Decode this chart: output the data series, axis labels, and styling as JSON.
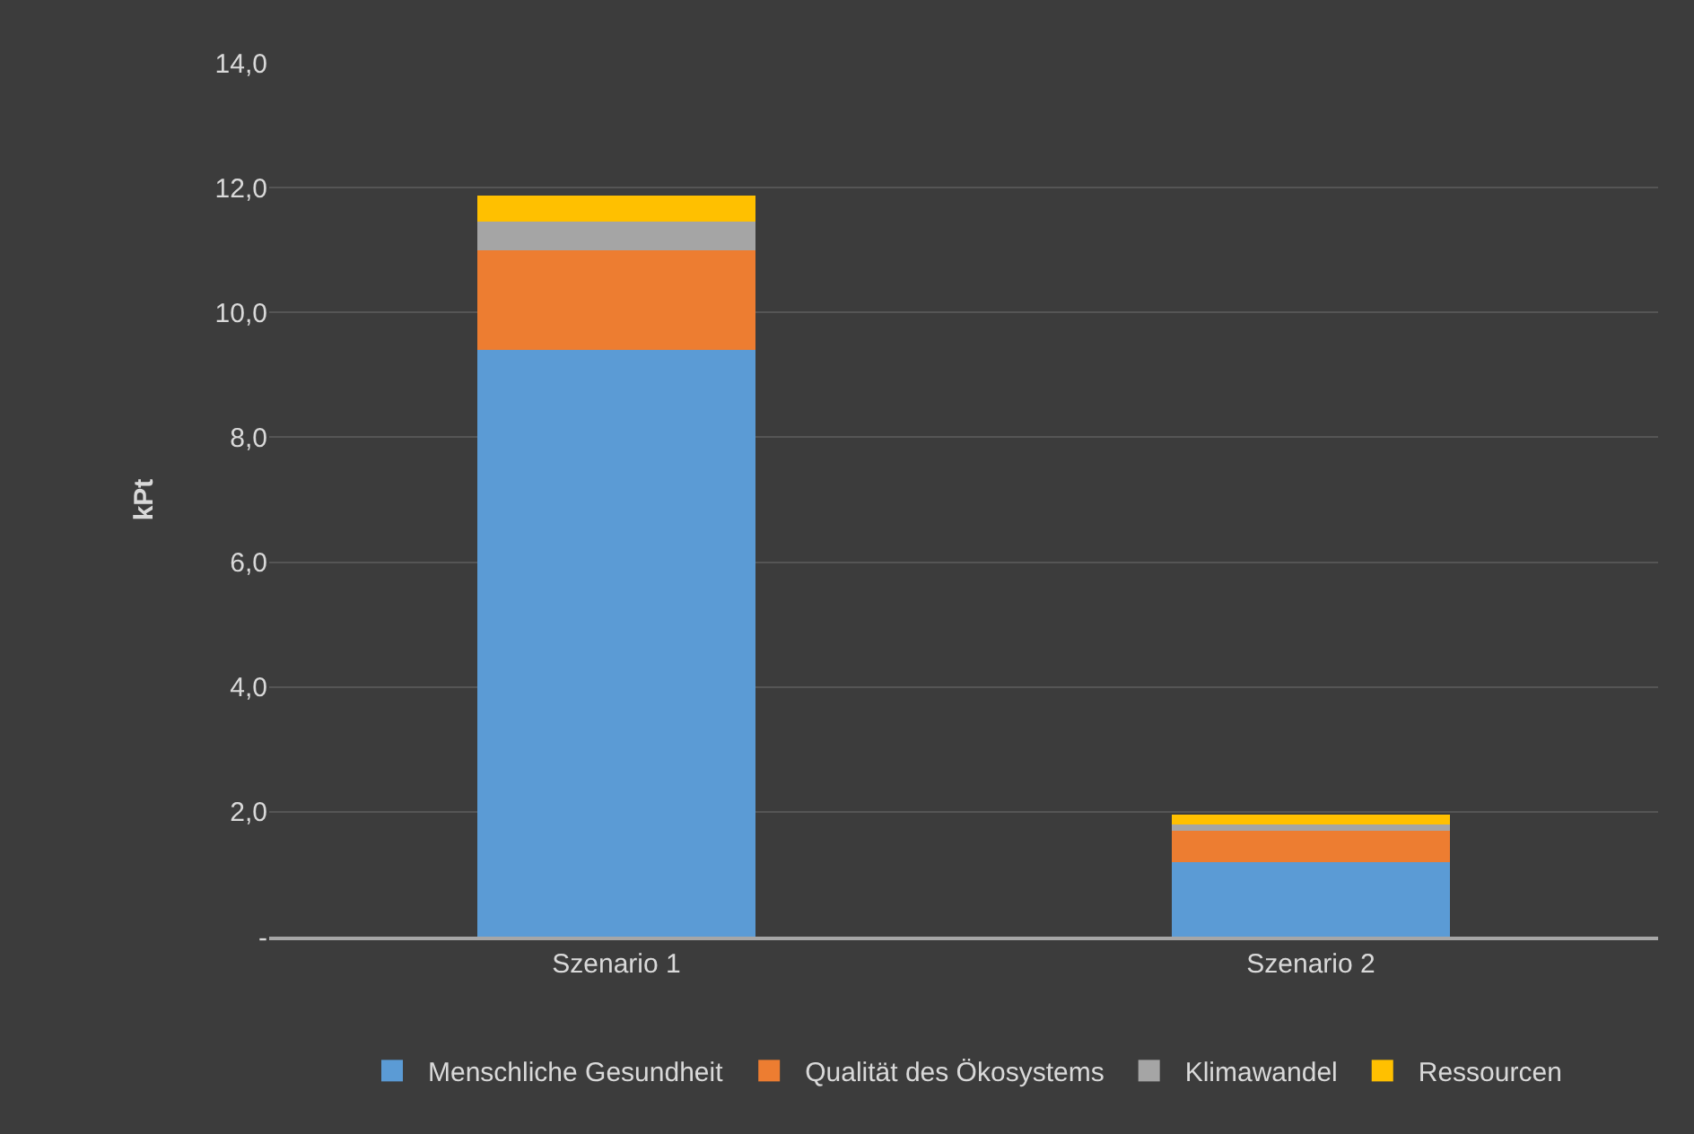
{
  "chart_data": {
    "type": "bar",
    "stacked": true,
    "ylabel": "kPt",
    "categories": [
      "Szenario 1",
      "Szenario 2"
    ],
    "series": [
      {
        "name": "Menschliche Gesundheit",
        "color": "#5b9bd5",
        "values": [
          9.4,
          1.2
        ]
      },
      {
        "name": "Qualität des Ökosystems",
        "color": "#ed7d31",
        "values": [
          1.6,
          0.5
        ]
      },
      {
        "name": "Klimawandel",
        "color": "#a5a5a5",
        "values": [
          0.45,
          0.1
        ]
      },
      {
        "name": "Ressourcen",
        "color": "#ffc000",
        "values": [
          0.42,
          0.15
        ]
      }
    ],
    "ylim": [
      0,
      14
    ],
    "yticks": [
      {
        "value": 0,
        "label": "-"
      },
      {
        "value": 2,
        "label": "2,0"
      },
      {
        "value": 4,
        "label": "4,0"
      },
      {
        "value": 6,
        "label": "6,0"
      },
      {
        "value": 8,
        "label": "8,0"
      },
      {
        "value": 10,
        "label": "10,0"
      },
      {
        "value": 12,
        "label": "12,0"
      },
      {
        "value": 14,
        "label": "14,0"
      }
    ],
    "grid": "y",
    "legend": "bottom"
  }
}
